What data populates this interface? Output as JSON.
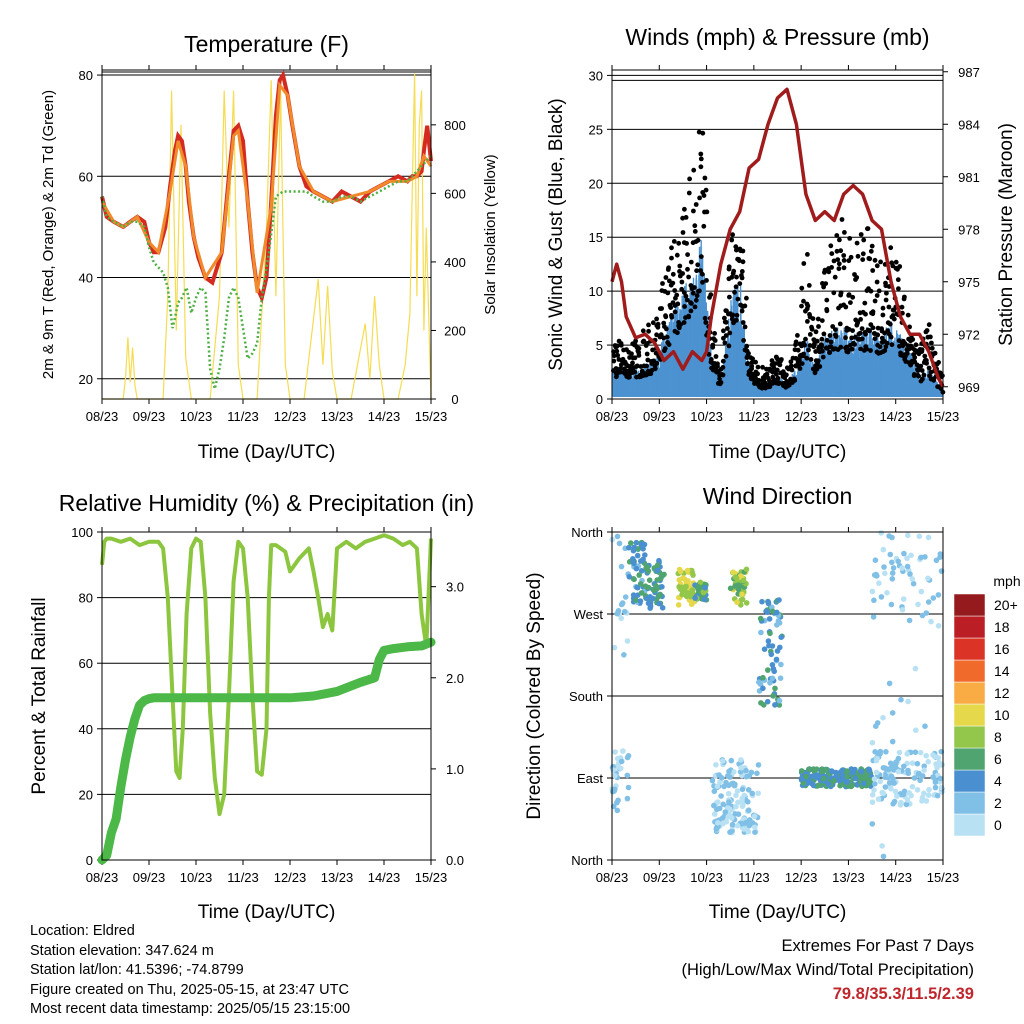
{
  "chart_data": [
    {
      "type": "line",
      "title": "Temperature (F)",
      "xlabel": "Time (Day/UTC)",
      "ylabel": "2m & 9m T (Red, Orange) & 2m Td (Green)",
      "y2label": "Solar Insolation (Yellow)",
      "x_ticks": [
        "08/23",
        "09/23",
        "10/23",
        "11/23",
        "12/23",
        "13/23",
        "14/23",
        "15/23"
      ],
      "y_ticks": [
        20,
        40,
        60,
        80
      ],
      "y2_ticks": [
        0,
        200,
        400,
        600,
        800
      ],
      "ylim": [
        16,
        81
      ],
      "y2lim": [
        0,
        960
      ],
      "xlim": [
        0,
        7
      ],
      "series": [
        {
          "name": "2m T",
          "color": "#d42a20",
          "x": [
            0,
            0.1,
            0.25,
            0.45,
            0.6,
            0.75,
            0.9,
            1.0,
            1.1,
            1.2,
            1.35,
            1.45,
            1.55,
            1.62,
            1.7,
            1.78,
            1.85,
            1.95,
            2.05,
            2.2,
            2.35,
            2.55,
            2.7,
            2.8,
            2.9,
            3.0,
            3.1,
            3.2,
            3.3,
            3.4,
            3.5,
            3.6,
            3.7,
            3.78,
            3.85,
            3.95,
            4.05,
            4.2,
            4.35,
            4.5,
            4.7,
            4.9,
            5.1,
            5.3,
            5.5,
            5.7,
            5.9,
            6.1,
            6.3,
            6.5,
            6.6,
            6.7,
            6.8,
            6.85,
            6.92,
            7.0
          ],
          "y": [
            56,
            52,
            51,
            50,
            51,
            52,
            51,
            47,
            45,
            45,
            50,
            58,
            65,
            68,
            67,
            62,
            55,
            48,
            44,
            40,
            39,
            45,
            60,
            69,
            70,
            67,
            55,
            45,
            38,
            36,
            40,
            55,
            72,
            79,
            80,
            76,
            70,
            62,
            58,
            57,
            56,
            55,
            57,
            56,
            55,
            57,
            58,
            59,
            60,
            59,
            60,
            60,
            61,
            65,
            70,
            63
          ]
        },
        {
          "name": "9m T",
          "color": "#f08a2a",
          "x": [
            0,
            0.25,
            0.45,
            0.75,
            1.0,
            1.2,
            1.45,
            1.62,
            1.78,
            1.95,
            2.2,
            2.55,
            2.8,
            2.9,
            3.1,
            3.3,
            3.6,
            3.78,
            3.95,
            4.2,
            4.5,
            4.9,
            5.3,
            5.7,
            6.1,
            6.5,
            6.7,
            6.85,
            7.0
          ],
          "y": [
            55,
            51,
            50,
            52,
            47,
            45,
            57,
            67,
            62,
            48,
            40,
            45,
            68,
            69,
            55,
            37,
            54,
            78,
            76,
            62,
            57,
            55,
            56,
            57,
            59,
            59,
            60,
            64,
            62
          ]
        },
        {
          "name": "2m Td",
          "color": "#4fb043",
          "x": [
            0,
            0.1,
            0.25,
            0.45,
            0.6,
            0.75,
            0.9,
            1.0,
            1.1,
            1.2,
            1.3,
            1.4,
            1.5,
            1.55,
            1.62,
            1.7,
            1.8,
            1.9,
            2.0,
            2.1,
            2.2,
            2.3,
            2.4,
            2.5,
            2.6,
            2.7,
            2.8,
            2.9,
            3.0,
            3.1,
            3.2,
            3.3,
            3.4,
            3.55,
            3.7,
            3.85,
            4.0,
            4.2,
            4.35,
            4.5,
            4.7,
            4.9,
            5.1,
            5.3,
            5.5,
            5.7,
            5.9,
            6.1,
            6.3,
            6.5,
            6.6,
            6.7,
            6.8,
            6.9,
            7.0
          ],
          "y": [
            56,
            52,
            51,
            50,
            51,
            51,
            50,
            46,
            43,
            42,
            41,
            38,
            30,
            32,
            35,
            36,
            38,
            33,
            36,
            38,
            37,
            22,
            18,
            22,
            28,
            36,
            38,
            36,
            30,
            24,
            25,
            27,
            36,
            45,
            56,
            57,
            57,
            57,
            57,
            56,
            55,
            55,
            56,
            56,
            55,
            56,
            57,
            58,
            59,
            59,
            60,
            61,
            62,
            63,
            64
          ]
        }
      ],
      "solar_insolation": {
        "name": "Solar Insolation",
        "color": "#f5dc52",
        "x": [
          0,
          0.45,
          0.5,
          0.55,
          0.6,
          0.65,
          0.7,
          0.75,
          1.3,
          1.4,
          1.48,
          1.58,
          1.68,
          1.78,
          1.9,
          2.0,
          2.3,
          2.5,
          2.6,
          2.7,
          2.8,
          2.9,
          3.0,
          3.3,
          3.5,
          3.6,
          3.7,
          3.8,
          3.9,
          4.0,
          4.3,
          4.6,
          4.7,
          4.8,
          4.9,
          5.0,
          5.3,
          5.6,
          5.7,
          5.8,
          5.9,
          6.0,
          6.3,
          6.45,
          6.55,
          6.6,
          6.65,
          6.7,
          6.75,
          6.8,
          6.85,
          6.9,
          7.0
        ],
        "y": [
          0,
          0,
          60,
          180,
          50,
          150,
          40,
          0,
          0,
          300,
          900,
          200,
          800,
          120,
          0,
          0,
          0,
          300,
          900,
          500,
          900,
          100,
          0,
          0,
          500,
          930,
          300,
          900,
          100,
          0,
          0,
          350,
          100,
          330,
          80,
          0,
          0,
          220,
          60,
          300,
          100,
          0,
          0,
          100,
          250,
          600,
          950,
          300,
          800,
          900,
          200,
          500,
          0
        ]
      }
    },
    {
      "type": "scatter",
      "title": "Winds (mph) & Pressure (mb)",
      "xlabel": "Time (Day/UTC)",
      "ylabel": "Sonic Wind & Gust (Blue, Black)",
      "y2label": "Station Pressure (Maroon)",
      "x_ticks": [
        "08/23",
        "09/23",
        "10/23",
        "11/23",
        "12/23",
        "13/23",
        "14/23",
        "15/23"
      ],
      "y_ticks": [
        0,
        5,
        10,
        15,
        20,
        25,
        30
      ],
      "y2_ticks": [
        969,
        972,
        975,
        978,
        981,
        984,
        987
      ],
      "ylim": [
        0,
        30.5
      ],
      "y2lim": [
        968.3,
        987.1
      ],
      "xlim": [
        0,
        7
      ],
      "wind_activity": {
        "x": [
          0,
          0.3,
          0.6,
          0.9,
          1.2,
          1.5,
          1.7,
          1.9,
          2.1,
          2.3,
          2.5,
          2.7,
          2.9,
          3.1,
          3.3,
          3.5,
          3.7,
          3.9,
          4.1,
          4.3,
          4.5,
          4.7,
          4.9,
          5.1,
          5.3,
          5.5,
          5.7,
          5.9,
          6.1,
          6.3,
          6.5,
          6.7,
          6.9,
          7.0
        ],
        "sustained": [
          2,
          2,
          2,
          2.5,
          5,
          7,
          8,
          10,
          3,
          1,
          6,
          8,
          2,
          1,
          1,
          1.5,
          1,
          2,
          4,
          2,
          4,
          4.5,
          4.5,
          4,
          4.5,
          4.5,
          4,
          5,
          4,
          3,
          1.5,
          2,
          1,
          0.5
        ],
        "gust_max": [
          6,
          5,
          6,
          8,
          13,
          18,
          22,
          28,
          8,
          3,
          15,
          17,
          5,
          3,
          3,
          5,
          3,
          6,
          15,
          6,
          13,
          15,
          17,
          15,
          17,
          15,
          13,
          15,
          12,
          9,
          5,
          7,
          4,
          2
        ]
      },
      "pressure": {
        "name": "Station Pressure",
        "color": "#a01c1c",
        "x": [
          0,
          0.1,
          0.2,
          0.3,
          0.5,
          0.7,
          0.9,
          1.1,
          1.3,
          1.5,
          1.7,
          1.9,
          2.0,
          2.1,
          2.3,
          2.5,
          2.7,
          2.9,
          3.1,
          3.3,
          3.5,
          3.7,
          3.9,
          4.1,
          4.3,
          4.5,
          4.7,
          4.9,
          5.1,
          5.3,
          5.5,
          5.7,
          5.9,
          6.1,
          6.3,
          6.5,
          6.7,
          6.9,
          7.0
        ],
        "y": [
          975,
          976,
          975,
          973,
          971.8,
          972,
          971.5,
          970.5,
          971,
          970,
          971,
          970.5,
          971,
          973,
          976,
          978,
          979,
          981.5,
          982,
          984,
          985.5,
          986,
          984,
          980,
          978.5,
          979,
          978.5,
          980,
          980.5,
          980,
          978.5,
          978,
          975,
          973,
          972,
          972,
          971,
          969.5,
          969
        ]
      }
    },
    {
      "type": "line",
      "title": "Relative Humidity (%) & Precipitation (in)",
      "xlabel": "Time (Day/UTC)",
      "ylabel": "Percent & Total Rainfall",
      "x_ticks": [
        "08/23",
        "09/23",
        "10/23",
        "11/23",
        "12/23",
        "13/23",
        "14/23",
        "15/23"
      ],
      "y_ticks": [
        0,
        20,
        40,
        60,
        80,
        100
      ],
      "y2_ticks": [
        0.0,
        1.0,
        2.0,
        3.0
      ],
      "ylim": [
        0,
        100
      ],
      "y2lim": [
        0,
        3.6
      ],
      "xlim": [
        0,
        7
      ],
      "series": [
        {
          "name": "Relative Humidity",
          "color": "#8cc63f",
          "x": [
            0,
            0.05,
            0.1,
            0.2,
            0.4,
            0.6,
            0.8,
            1.0,
            1.2,
            1.3,
            1.4,
            1.5,
            1.58,
            1.65,
            1.72,
            1.8,
            1.9,
            2.0,
            2.1,
            2.2,
            2.3,
            2.4,
            2.5,
            2.6,
            2.7,
            2.8,
            2.9,
            3.0,
            3.1,
            3.2,
            3.3,
            3.4,
            3.5,
            3.55,
            3.6,
            3.7,
            3.8,
            3.9,
            4.0,
            4.2,
            4.4,
            4.5,
            4.6,
            4.7,
            4.8,
            4.9,
            5.0,
            5.2,
            5.4,
            5.6,
            5.8,
            6.0,
            6.2,
            6.4,
            6.55,
            6.7,
            6.8,
            6.9,
            7.0
          ],
          "y": [
            90,
            97,
            98,
            98,
            97,
            98,
            96,
            97,
            97,
            95,
            80,
            50,
            27,
            25,
            40,
            75,
            95,
            98,
            97,
            80,
            45,
            25,
            14,
            20,
            50,
            85,
            97,
            95,
            80,
            50,
            27,
            26,
            40,
            80,
            96,
            96,
            95,
            94,
            88,
            92,
            95,
            88,
            80,
            71,
            75,
            70,
            95,
            97,
            95,
            97,
            98,
            99,
            98,
            96,
            97,
            95,
            75,
            65,
            98
          ]
        },
        {
          "name": "Total Rainfall",
          "color": "#4cb848",
          "x": [
            0,
            0.1,
            0.2,
            0.3,
            0.4,
            0.5,
            0.6,
            0.7,
            0.8,
            0.9,
            1.0,
            1.1,
            1.3,
            1.5,
            2.0,
            3.0,
            4.0,
            4.5,
            5.0,
            5.5,
            5.8,
            5.9,
            6.0,
            6.2,
            6.5,
            6.8,
            7.0
          ],
          "y": [
            0,
            0.05,
            0.3,
            0.45,
            0.8,
            1.1,
            1.35,
            1.55,
            1.7,
            1.75,
            1.77,
            1.78,
            1.78,
            1.78,
            1.78,
            1.78,
            1.78,
            1.8,
            1.85,
            1.95,
            2.0,
            2.2,
            2.3,
            2.32,
            2.34,
            2.35,
            2.39
          ]
        }
      ]
    },
    {
      "type": "scatter",
      "title": "Wind Direction",
      "xlabel": "Time (Day/UTC)",
      "ylabel": "Direction (Colored By Speed)",
      "x_ticks": [
        "08/23",
        "09/23",
        "10/23",
        "11/23",
        "12/23",
        "13/23",
        "14/23",
        "15/23"
      ],
      "y_ticks": [
        "North",
        "East",
        "South",
        "West",
        "North"
      ],
      "y_tick_values": [
        0,
        90,
        180,
        270,
        360
      ],
      "xlim": [
        0,
        7
      ],
      "ylim": [
        0,
        360
      ],
      "colorbar": {
        "title": "mph",
        "labels": [
          "0",
          "2",
          "4",
          "6",
          "8",
          "10",
          "12",
          "14",
          "16",
          "18",
          "20+"
        ],
        "colors": [
          "#b9e1f4",
          "#80bfe6",
          "#4a8fcf",
          "#4fa46f",
          "#93c74b",
          "#e5d84b",
          "#f8ac43",
          "#ef6a2b",
          "#db3326",
          "#bb1f25",
          "#951a1d"
        ]
      },
      "clusters": [
        {
          "x": [
            0.0,
            0.35
          ],
          "dir": [
            0,
            360
          ],
          "speed": 1
        },
        {
          "x": [
            0.35,
            0.7
          ],
          "dir": [
            280,
            350
          ],
          "speed": 4
        },
        {
          "x": [
            0.7,
            1.1
          ],
          "dir": [
            275,
            330
          ],
          "speed": 5
        },
        {
          "x": [
            1.4,
            1.75
          ],
          "dir": [
            280,
            320
          ],
          "speed": 9
        },
        {
          "x": [
            1.75,
            2.0
          ],
          "dir": [
            285,
            305
          ],
          "speed": 6
        },
        {
          "x": [
            2.5,
            2.85
          ],
          "dir": [
            280,
            320
          ],
          "speed": 8
        },
        {
          "x": [
            2.1,
            3.1
          ],
          "dir": [
            30,
            110
          ],
          "speed": 1
        },
        {
          "x": [
            3.1,
            3.6
          ],
          "dir": [
            170,
            290
          ],
          "speed": 4
        },
        {
          "x": [
            4.0,
            5.5
          ],
          "dir": [
            80,
            100
          ],
          "speed": 5
        },
        {
          "x": [
            5.5,
            7.0
          ],
          "dir": [
            0,
            360
          ],
          "speed": 1
        }
      ]
    }
  ],
  "info": {
    "location": "Location: Eldred",
    "elevation": "Station elevation: 347.624 m",
    "latlon": "Station lat/lon: 41.5396; -74.8799",
    "created": "Figure created on Thu, 2025-05-15, at 23:47 UTC",
    "recent": "Most recent data timestamp: 2025/05/15 23:15:00"
  },
  "extremes": {
    "line1": "Extremes For Past 7 Days",
    "line2": "(High/Low/Max Wind/Total Precipitation)",
    "values": "79.8/35.3/11.5/2.39"
  }
}
